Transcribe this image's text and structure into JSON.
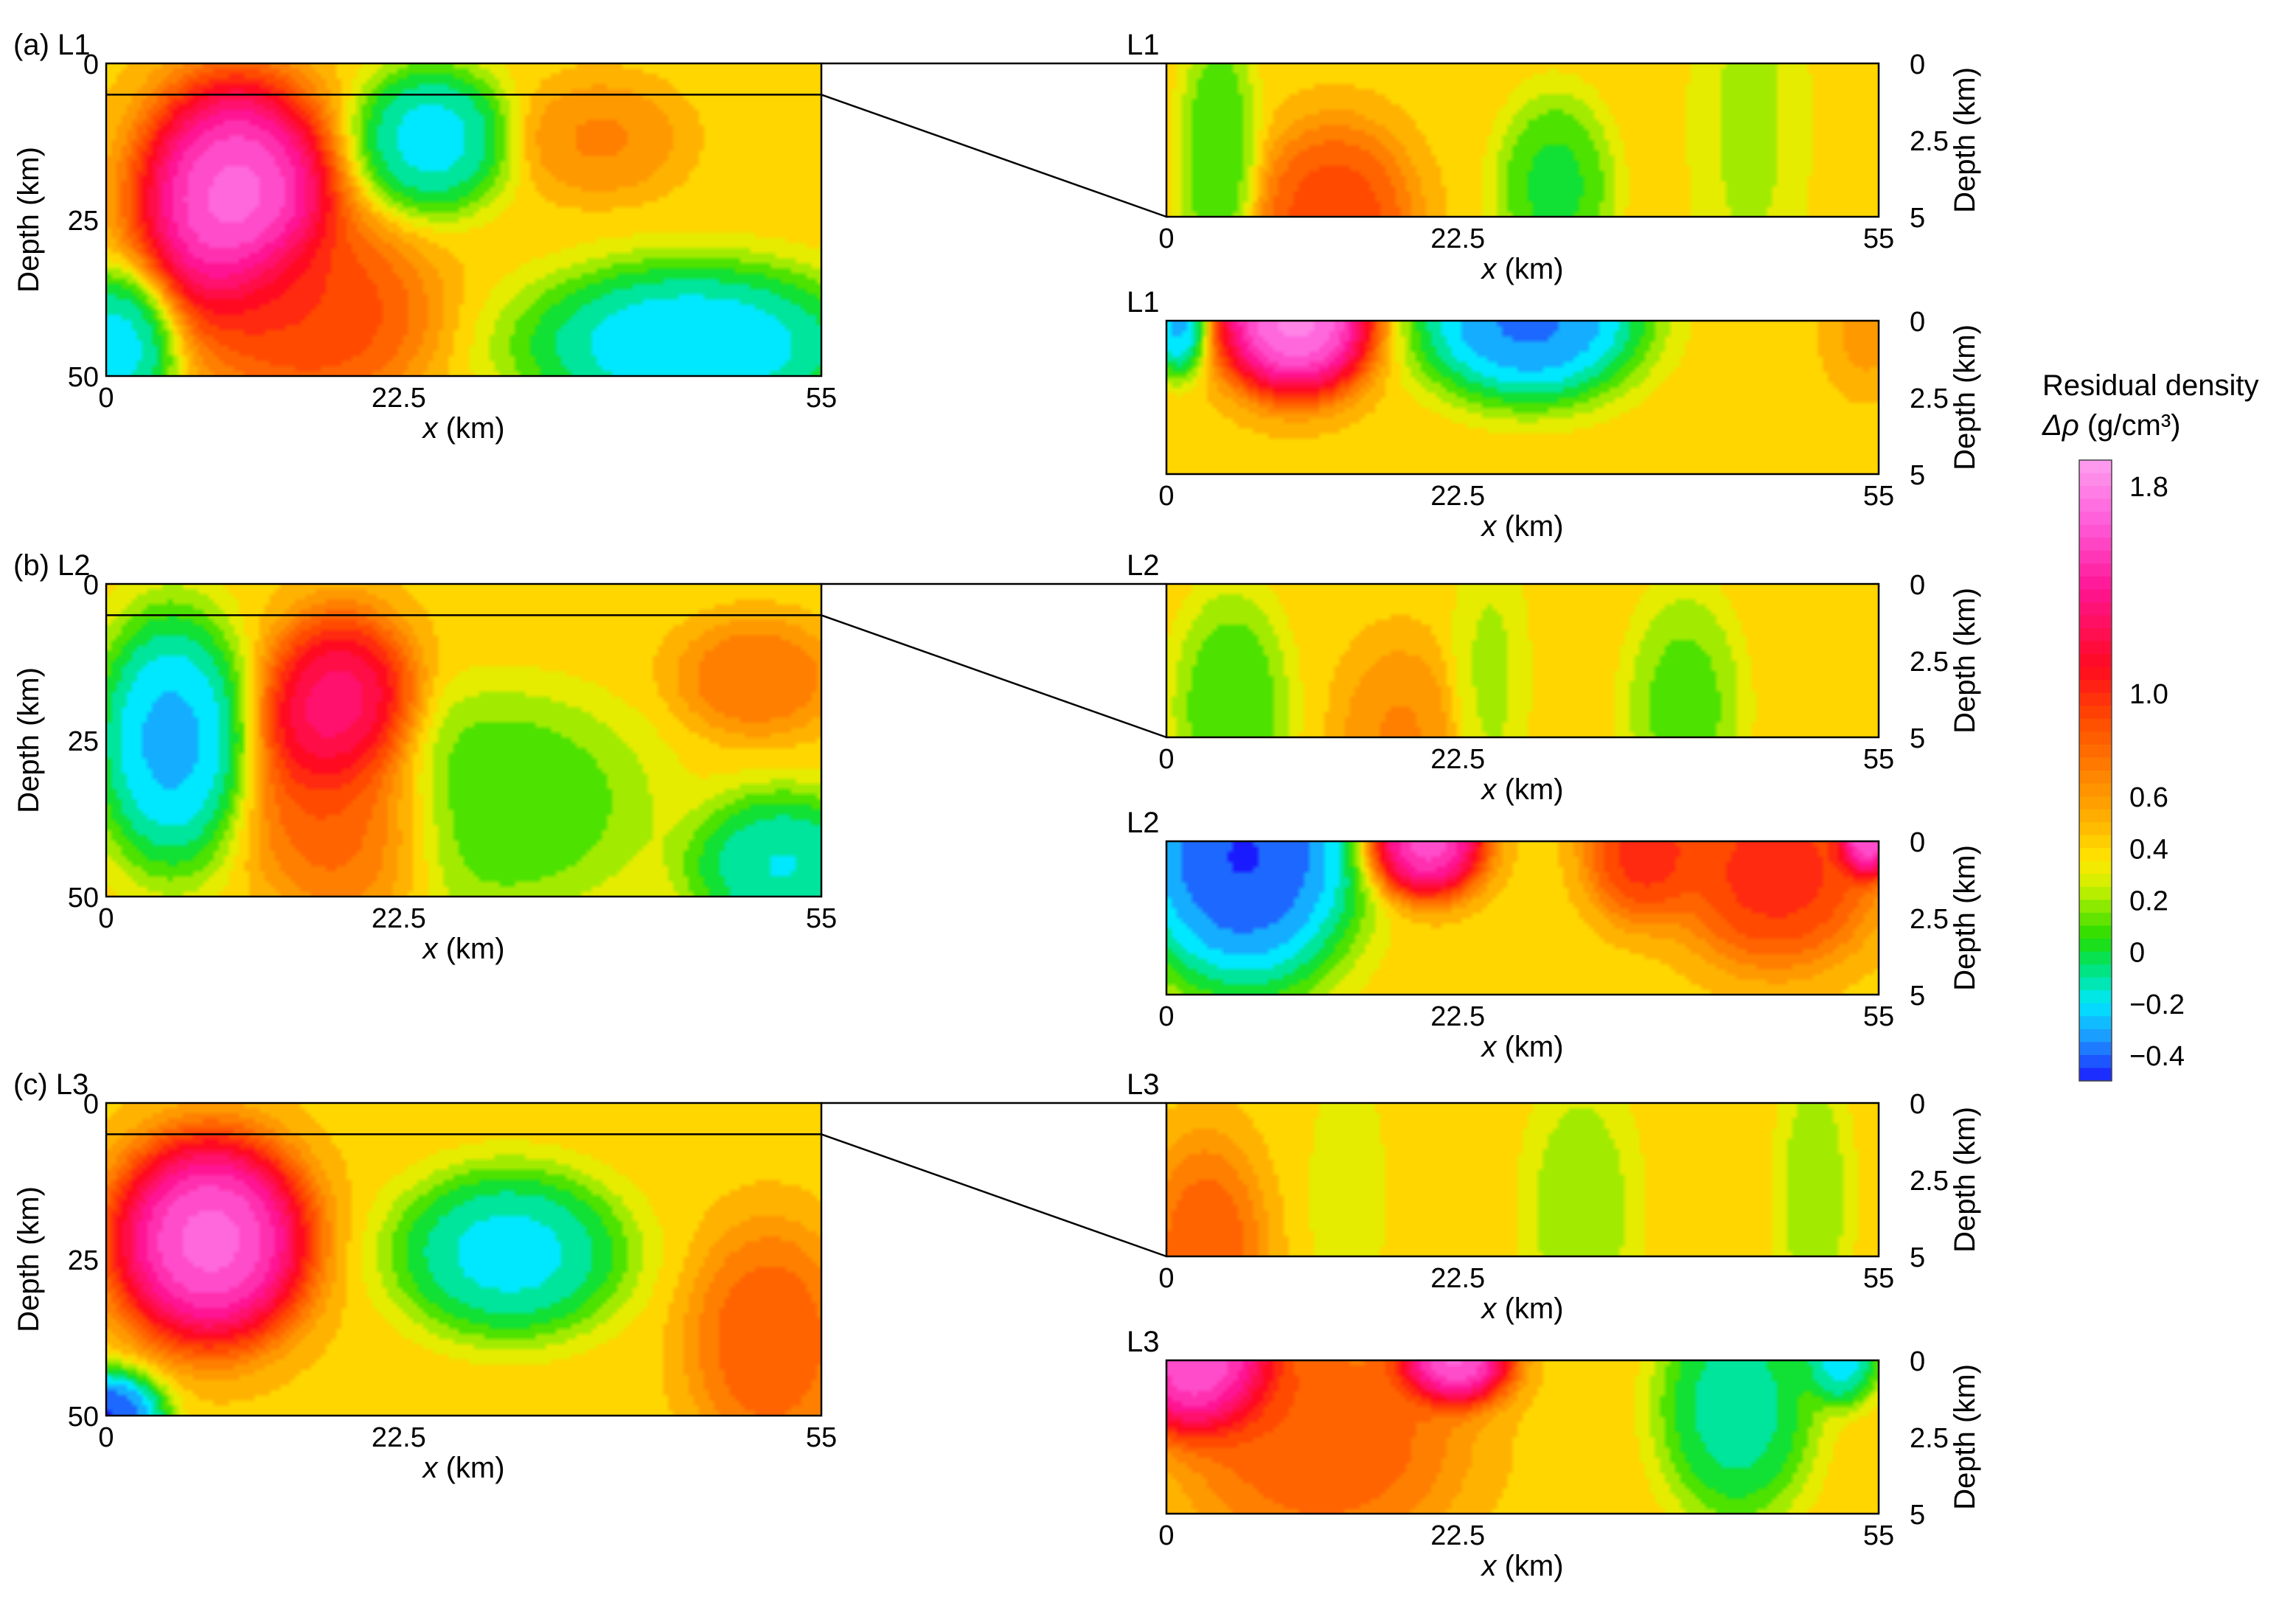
{
  "chart_data": [
    {
      "type": "heatmap",
      "panel_label": "(a)",
      "profile": "L1",
      "xlabel": "x (km)",
      "ylabel": "Depth (km)",
      "x_ticks": [
        "0",
        "22.5",
        "55"
      ],
      "y_ticks": [
        "0",
        "25",
        "50"
      ],
      "xlim": [
        0,
        55
      ],
      "ylim": [
        0,
        50
      ],
      "blobs": [
        {
          "x": 10,
          "y": 22,
          "value": 1.9,
          "sx": 5,
          "sy": 13
        },
        {
          "x": 16,
          "y": 40,
          "value": 1.0,
          "sx": 6,
          "sy": 10
        },
        {
          "x": 25,
          "y": 12,
          "value": -0.3,
          "sx": 4,
          "sy": 8
        },
        {
          "x": 38,
          "y": 12,
          "value": 0.7,
          "sx": 4,
          "sy": 6
        },
        {
          "x": 45,
          "y": 45,
          "value": -0.35,
          "sx": 9,
          "sy": 9
        },
        {
          "x": 1,
          "y": 45,
          "value": -0.3,
          "sx": 3,
          "sy": 8
        }
      ]
    },
    {
      "type": "heatmap",
      "profile": "L1",
      "xlabel": "x (km)",
      "ylabel": "Depth (km)",
      "x_ticks": [
        "0",
        "22.5",
        "55"
      ],
      "y_ticks": [
        "0",
        "2.5",
        "5"
      ],
      "xlim": [
        0,
        55
      ],
      "ylim": [
        0,
        5
      ],
      "blobs": [
        {
          "x": 13,
          "y": 5,
          "value": 1.0,
          "sx": 4,
          "sy": 2.0
        },
        {
          "x": 30,
          "y": 4,
          "value": -0.05,
          "sx": 3,
          "sy": 2.0
        },
        {
          "x": 4,
          "y": 3,
          "value": 0.0,
          "sx": 2,
          "sy": 3
        },
        {
          "x": 45,
          "y": 2,
          "value": 0.2,
          "sx": 3,
          "sy": 5
        }
      ]
    },
    {
      "type": "heatmap",
      "profile": "L1",
      "xlabel": "x (km)",
      "ylabel": "Depth (km)",
      "x_ticks": [
        "0",
        "22.5",
        "55"
      ],
      "y_ticks": [
        "0",
        "2.5",
        "5"
      ],
      "xlim": [
        0,
        55
      ],
      "ylim": [
        0,
        5
      ],
      "blobs": [
        {
          "x": 10,
          "y": 0,
          "value": 2.0,
          "sx": 4,
          "sy": 1.6
        },
        {
          "x": 28,
          "y": 0,
          "value": -0.5,
          "sx": 6,
          "sy": 1.8
        },
        {
          "x": 1,
          "y": 0,
          "value": -0.4,
          "sx": 1.5,
          "sy": 1.2
        },
        {
          "x": 54,
          "y": 0.5,
          "value": 0.6,
          "sx": 2,
          "sy": 1.2
        }
      ]
    },
    {
      "type": "heatmap",
      "panel_label": "(b)",
      "profile": "L2",
      "xlabel": "x (km)",
      "ylabel": "Depth (km)",
      "x_ticks": [
        "0",
        "22.5",
        "55"
      ],
      "y_ticks": [
        "0",
        "25",
        "50"
      ],
      "xlim": [
        0,
        55
      ],
      "ylim": [
        0,
        50
      ],
      "blobs": [
        {
          "x": 5,
          "y": 25,
          "value": -0.4,
          "sx": 4,
          "sy": 14
        },
        {
          "x": 18,
          "y": 22,
          "value": 1.5,
          "sx": 4,
          "sy": 11
        },
        {
          "x": 19,
          "y": 38,
          "value": 0.9,
          "sx": 5,
          "sy": 10
        },
        {
          "x": 50,
          "y": 15,
          "value": 0.8,
          "sx": 4,
          "sy": 6
        },
        {
          "x": 52,
          "y": 45,
          "value": -0.25,
          "sx": 5,
          "sy": 8
        },
        {
          "x": 30,
          "y": 35,
          "value": 0.0,
          "sx": 8,
          "sy": 12
        }
      ]
    },
    {
      "type": "heatmap",
      "profile": "L2",
      "xlabel": "x (km)",
      "ylabel": "Depth (km)",
      "x_ticks": [
        "0",
        "22.5",
        "55"
      ],
      "y_ticks": [
        "0",
        "2.5",
        "5"
      ],
      "xlim": [
        0,
        55
      ],
      "ylim": [
        0,
        5
      ],
      "blobs": [
        {
          "x": 5,
          "y": 4,
          "value": 0.0,
          "sx": 3,
          "sy": 2.5
        },
        {
          "x": 18,
          "y": 5,
          "value": 0.7,
          "sx": 3,
          "sy": 2.0
        },
        {
          "x": 40,
          "y": 4,
          "value": 0.05,
          "sx": 3,
          "sy": 2.5
        },
        {
          "x": 25,
          "y": 3,
          "value": 0.2,
          "sx": 2,
          "sy": 3
        }
      ]
    },
    {
      "type": "heatmap",
      "profile": "L2",
      "xlabel": "x (km)",
      "ylabel": "Depth (km)",
      "x_ticks": [
        "0",
        "22.5",
        "55"
      ],
      "y_ticks": [
        "0",
        "2.5",
        "5"
      ],
      "xlim": [
        0,
        55
      ],
      "ylim": [
        0,
        5
      ],
      "blobs": [
        {
          "x": 6,
          "y": 0.5,
          "value": -0.6,
          "sx": 6,
          "sy": 3.0
        },
        {
          "x": 20,
          "y": 0,
          "value": 1.8,
          "sx": 3,
          "sy": 1.2
        },
        {
          "x": 37,
          "y": 0.3,
          "value": 1.1,
          "sx": 3,
          "sy": 1.5
        },
        {
          "x": 47,
          "y": 1.0,
          "value": 1.1,
          "sx": 5,
          "sy": 2.0
        },
        {
          "x": 54,
          "y": 0,
          "value": 1.9,
          "sx": 1.5,
          "sy": 0.8
        }
      ]
    },
    {
      "type": "heatmap",
      "panel_label": "(c)",
      "profile": "L3",
      "xlabel": "x (km)",
      "ylabel": "Depth (km)",
      "x_ticks": [
        "0",
        "22.5",
        "55"
      ],
      "y_ticks": [
        "0",
        "25",
        "50"
      ],
      "xlim": [
        0,
        55
      ],
      "ylim": [
        0,
        50
      ],
      "blobs": [
        {
          "x": 8,
          "y": 22,
          "value": 1.9,
          "sx": 5,
          "sy": 11
        },
        {
          "x": 31,
          "y": 24,
          "value": -0.3,
          "sx": 6,
          "sy": 9
        },
        {
          "x": 51,
          "y": 38,
          "value": 0.9,
          "sx": 4,
          "sy": 12
        },
        {
          "x": 0,
          "y": 50,
          "value": -0.6,
          "sx": 3,
          "sy": 5
        }
      ]
    },
    {
      "type": "heatmap",
      "profile": "L3",
      "xlabel": "x (km)",
      "ylabel": "Depth (km)",
      "x_ticks": [
        "0",
        "22.5",
        "55"
      ],
      "y_ticks": [
        "0",
        "2.5",
        "5"
      ],
      "xlim": [
        0,
        55
      ],
      "ylim": [
        0,
        5
      ],
      "blobs": [
        {
          "x": 3,
          "y": 5,
          "value": 0.9,
          "sx": 3,
          "sy": 2.5
        },
        {
          "x": 14,
          "y": 3,
          "value": 0.25,
          "sx": 2,
          "sy": 3
        },
        {
          "x": 32,
          "y": 3.5,
          "value": 0.15,
          "sx": 3,
          "sy": 3
        },
        {
          "x": 50,
          "y": 3,
          "value": 0.15,
          "sx": 2,
          "sy": 3
        }
      ]
    },
    {
      "type": "heatmap",
      "profile": "L3",
      "xlabel": "x (km)",
      "ylabel": "Depth (km)",
      "x_ticks": [
        "0",
        "22.5",
        "55"
      ],
      "y_ticks": [
        "0",
        "2.5",
        "5"
      ],
      "xlim": [
        0,
        55
      ],
      "ylim": [
        0,
        5
      ],
      "blobs": [
        {
          "x": 3,
          "y": 0.3,
          "value": 1.9,
          "sx": 4,
          "sy": 1.5
        },
        {
          "x": 22,
          "y": 0,
          "value": 1.9,
          "sx": 3,
          "sy": 1.0
        },
        {
          "x": 12,
          "y": 2.5,
          "value": 0.9,
          "sx": 7,
          "sy": 2.5
        },
        {
          "x": 44,
          "y": 1.5,
          "value": -0.2,
          "sx": 4,
          "sy": 2.5
        },
        {
          "x": 52,
          "y": 0,
          "value": -0.3,
          "sx": 2,
          "sy": 1.0
        }
      ]
    }
  ],
  "colorbar": {
    "title_line1": "Residual density",
    "title_line2": "Δρ (g/cm³)",
    "min": -0.5,
    "max": 1.9,
    "ticks": [
      "1.8",
      "1.0",
      "0.6",
      "0.4",
      "0.2",
      "0",
      "−0.2",
      "−0.4"
    ],
    "tick_values": [
      1.8,
      1.0,
      0.6,
      0.4,
      0.2,
      0,
      -0.2,
      -0.4
    ],
    "stops": [
      [
        -0.5,
        "#1a1aff"
      ],
      [
        -0.35,
        "#1f8fff"
      ],
      [
        -0.2,
        "#00e8ff"
      ],
      [
        -0.05,
        "#00e36a"
      ],
      [
        0.05,
        "#22dd00"
      ],
      [
        0.25,
        "#ccf000"
      ],
      [
        0.35,
        "#ffe800"
      ],
      [
        0.5,
        "#ffb300"
      ],
      [
        0.7,
        "#ff7f00"
      ],
      [
        0.9,
        "#ff4a00"
      ],
      [
        1.1,
        "#ff0a20"
      ],
      [
        1.4,
        "#ff1493"
      ],
      [
        1.65,
        "#ff5ad8"
      ],
      [
        1.9,
        "#ffa0f0"
      ]
    ]
  }
}
